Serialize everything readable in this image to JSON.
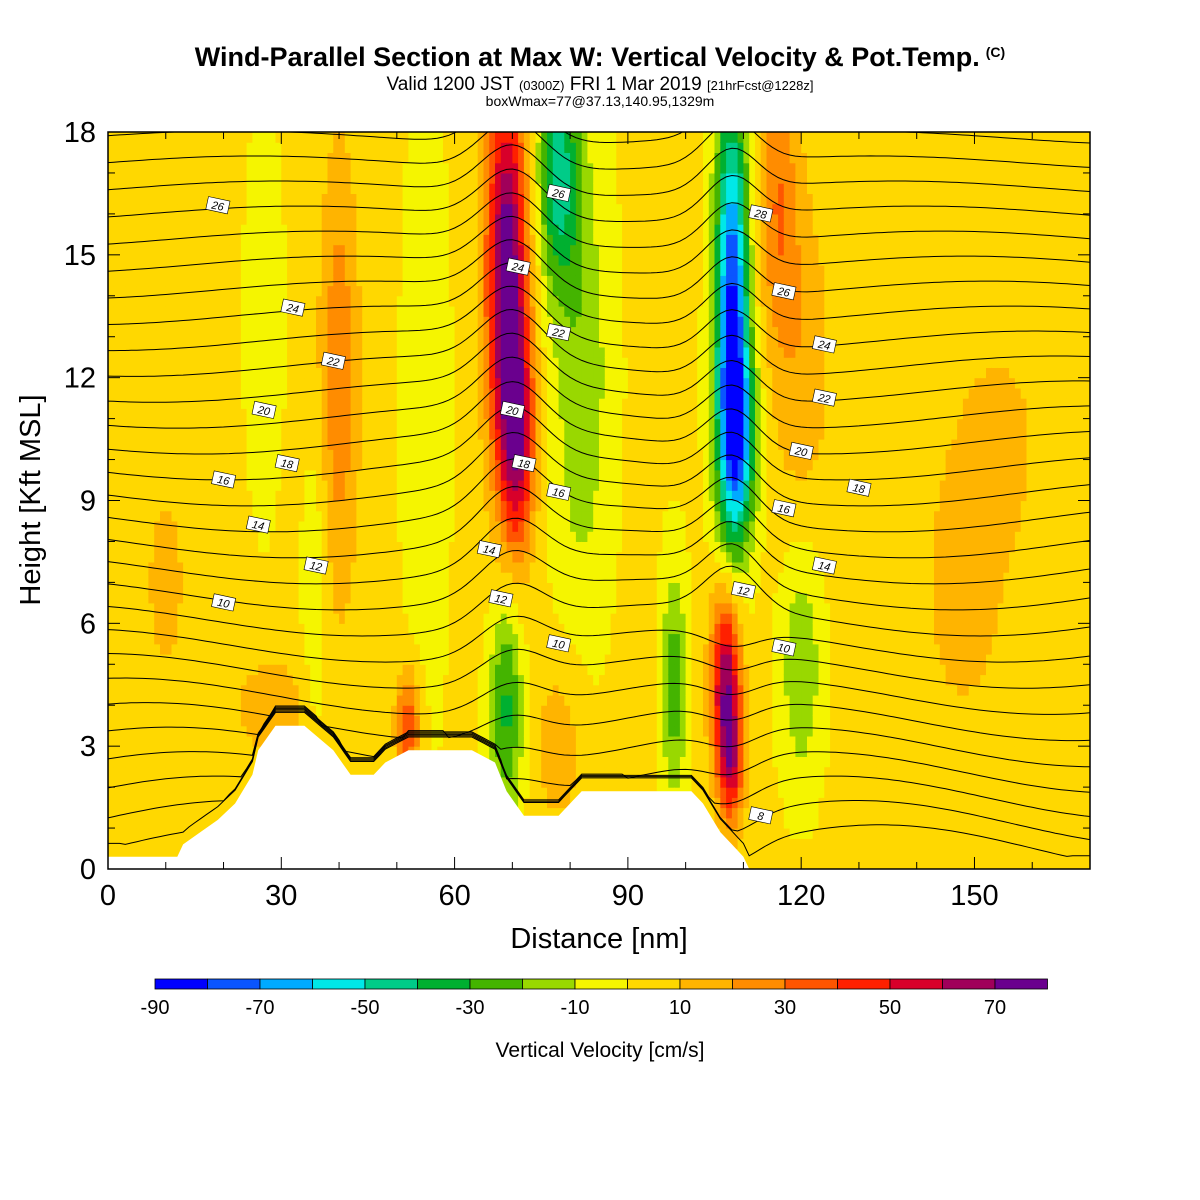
{
  "header": {
    "title": "Wind-Parallel Section at Max W: Vertical Velocity & Pot.Temp.",
    "copyright": "(C)",
    "valid_prefix": "Valid 1200 JST",
    "valid_utc": "(0300Z)",
    "valid_date": "FRI 1 Mar 2019",
    "valid_fcst": "[21hrFcst@1228z]",
    "box_info": "boxWmax=77@37.13,140.95,1329m"
  },
  "colors": {
    "levels": [
      "#0000ff",
      "#0a55ff",
      "#00aaff",
      "#00e8e8",
      "#00cc88",
      "#00b030",
      "#44b400",
      "#99d800",
      "#f5f500",
      "#ffd800",
      "#ffb400",
      "#ff8c00",
      "#ff5500",
      "#ff2000",
      "#d8002a",
      "#a0005a",
      "#6a008e"
    ],
    "terrain": "#ffffff",
    "contour": "#000000"
  },
  "chart_data": {
    "type": "heatmap",
    "xlabel": "Distance [nm]",
    "ylabel": "Height [Kft MSL]",
    "xlim": [
      0,
      170
    ],
    "ylim": [
      0,
      18
    ],
    "xticks": [
      "0",
      "30",
      "60",
      "90",
      "120",
      "150"
    ],
    "yticks": [
      "0",
      "3",
      "6",
      "9",
      "12",
      "15",
      "18"
    ],
    "colorbar": {
      "label": "Vertical Velocity [cm/s]",
      "ticks": [
        "-90",
        "-70",
        "-50",
        "-30",
        "-10",
        "10",
        "30",
        "50",
        "70"
      ],
      "boundaries": [
        -90,
        -80,
        -70,
        -60,
        -50,
        -40,
        -30,
        -20,
        -10,
        0,
        10,
        20,
        30,
        40,
        50,
        60,
        70,
        80
      ]
    },
    "terrain_kft": [
      [
        0,
        0.3
      ],
      [
        12,
        0.3
      ],
      [
        13,
        0.6
      ],
      [
        16,
        0.9
      ],
      [
        19,
        1.2
      ],
      [
        22,
        1.6
      ],
      [
        25,
        2.3
      ],
      [
        26,
        2.9
      ],
      [
        29,
        3.5
      ],
      [
        34,
        3.5
      ],
      [
        39,
        2.9
      ],
      [
        42,
        2.3
      ],
      [
        46,
        2.3
      ],
      [
        48,
        2.6
      ],
      [
        52,
        2.9
      ],
      [
        63,
        2.9
      ],
      [
        67,
        2.6
      ],
      [
        69,
        1.9
      ],
      [
        72,
        1.3
      ],
      [
        78,
        1.3
      ],
      [
        80,
        1.6
      ],
      [
        82,
        1.9
      ],
      [
        101,
        1.9
      ],
      [
        103,
        1.6
      ],
      [
        106,
        0.9
      ],
      [
        108,
        0.6
      ],
      [
        110,
        0.3
      ],
      [
        111,
        0
      ]
    ],
    "w_features": [
      {
        "x": 69,
        "z": 14.5,
        "w": 77,
        "sx": 2.5,
        "sz": 3.5
      },
      {
        "x": 71,
        "z": 10.5,
        "w": 50,
        "sx": 2.0,
        "sz": 2.0
      },
      {
        "x": 107,
        "z": 4.5,
        "w": 68,
        "sx": 1.8,
        "sz": 1.6
      },
      {
        "x": 108,
        "z": 2.5,
        "w": 40,
        "sx": 1.5,
        "sz": 1.0
      },
      {
        "x": 108,
        "z": 14.0,
        "w": -80,
        "sx": 2.0,
        "sz": 3.5
      },
      {
        "x": 109,
        "z": 10.5,
        "w": -55,
        "sx": 2.3,
        "sz": 1.8
      },
      {
        "x": 78,
        "z": 17.0,
        "w": -45,
        "sx": 2.5,
        "sz": 2.0
      },
      {
        "x": 82,
        "z": 12.0,
        "w": -20,
        "sx": 3.5,
        "sz": 4.0
      },
      {
        "x": 69,
        "z": 4.0,
        "w": -35,
        "sx": 2.0,
        "sz": 2.0
      },
      {
        "x": 98,
        "z": 4.5,
        "w": -28,
        "sx": 1.5,
        "sz": 2.0
      },
      {
        "x": 120,
        "z": 5.0,
        "w": -22,
        "sx": 2.5,
        "sz": 2.0
      },
      {
        "x": 27,
        "z": 13.5,
        "w": -12,
        "sx": 2.0,
        "sz": 3.0
      },
      {
        "x": 36,
        "z": 7.0,
        "w": -12,
        "sx": 1.5,
        "sz": 2.5
      },
      {
        "x": 55,
        "z": 11.0,
        "w": -12,
        "sx": 2.5,
        "sz": 5.0
      },
      {
        "x": 40,
        "z": 12.0,
        "w": 25,
        "sx": 2.5,
        "sz": 4.0
      },
      {
        "x": 52,
        "z": 3.5,
        "w": 38,
        "sx": 1.5,
        "sz": 1.0
      },
      {
        "x": 28,
        "z": 4.0,
        "w": 18,
        "sx": 4.0,
        "sz": 0.8
      },
      {
        "x": 116,
        "z": 16.5,
        "w": 25,
        "sx": 2.5,
        "sz": 2.5
      },
      {
        "x": 120,
        "z": 12.5,
        "w": 15,
        "sx": 4.0,
        "sz": 3.0
      },
      {
        "x": 148,
        "z": 7.0,
        "w": 12,
        "sx": 6.0,
        "sz": 3.0
      },
      {
        "x": 10,
        "z": 7.0,
        "w": 10,
        "sx": 4.0,
        "sz": 2.5
      },
      {
        "x": 78,
        "z": 3.0,
        "w": 15,
        "sx": 3.0,
        "sz": 1.5
      },
      {
        "x": 155,
        "z": 10.5,
        "w": 10,
        "sx": 5.0,
        "sz": 2.0
      }
    ],
    "theta_contours": [
      {
        "value": "8",
        "label_pos": [
          113,
          1.3
        ]
      },
      {
        "value": "10",
        "label_pos": [
          20,
          6.5
        ]
      },
      {
        "value": "10",
        "label_pos": [
          78,
          5.5
        ]
      },
      {
        "value": "10",
        "label_pos": [
          117,
          5.4
        ]
      },
      {
        "value": "12",
        "label_pos": [
          36,
          7.4
        ]
      },
      {
        "value": "12",
        "label_pos": [
          68,
          6.6
        ]
      },
      {
        "value": "12",
        "label_pos": [
          110,
          6.8
        ]
      },
      {
        "value": "14",
        "label_pos": [
          26,
          8.4
        ]
      },
      {
        "value": "14",
        "label_pos": [
          66,
          7.8
        ]
      },
      {
        "value": "14",
        "label_pos": [
          124,
          7.4
        ]
      },
      {
        "value": "16",
        "label_pos": [
          20,
          9.5
        ]
      },
      {
        "value": "16",
        "label_pos": [
          78,
          9.2
        ]
      },
      {
        "value": "16",
        "label_pos": [
          117,
          8.8
        ]
      },
      {
        "value": "18",
        "label_pos": [
          31,
          9.9
        ]
      },
      {
        "value": "18",
        "label_pos": [
          72,
          9.9
        ]
      },
      {
        "value": "18",
        "label_pos": [
          130,
          9.3
        ]
      },
      {
        "value": "20",
        "label_pos": [
          27,
          11.2
        ]
      },
      {
        "value": "20",
        "label_pos": [
          70,
          11.2
        ]
      },
      {
        "value": "20",
        "label_pos": [
          120,
          10.2
        ]
      },
      {
        "value": "22",
        "label_pos": [
          39,
          12.4
        ]
      },
      {
        "value": "22",
        "label_pos": [
          78,
          13.1
        ]
      },
      {
        "value": "22",
        "label_pos": [
          124,
          11.5
        ]
      },
      {
        "value": "24",
        "label_pos": [
          32,
          13.7
        ]
      },
      {
        "value": "24",
        "label_pos": [
          71,
          14.7
        ]
      },
      {
        "value": "24",
        "label_pos": [
          124,
          12.8
        ]
      },
      {
        "value": "26",
        "label_pos": [
          19,
          16.2
        ]
      },
      {
        "value": "26",
        "label_pos": [
          78,
          16.5
        ]
      },
      {
        "value": "26",
        "label_pos": [
          117,
          14.1
        ]
      },
      {
        "value": "28",
        "label_pos": [
          113,
          16.0
        ]
      }
    ]
  }
}
